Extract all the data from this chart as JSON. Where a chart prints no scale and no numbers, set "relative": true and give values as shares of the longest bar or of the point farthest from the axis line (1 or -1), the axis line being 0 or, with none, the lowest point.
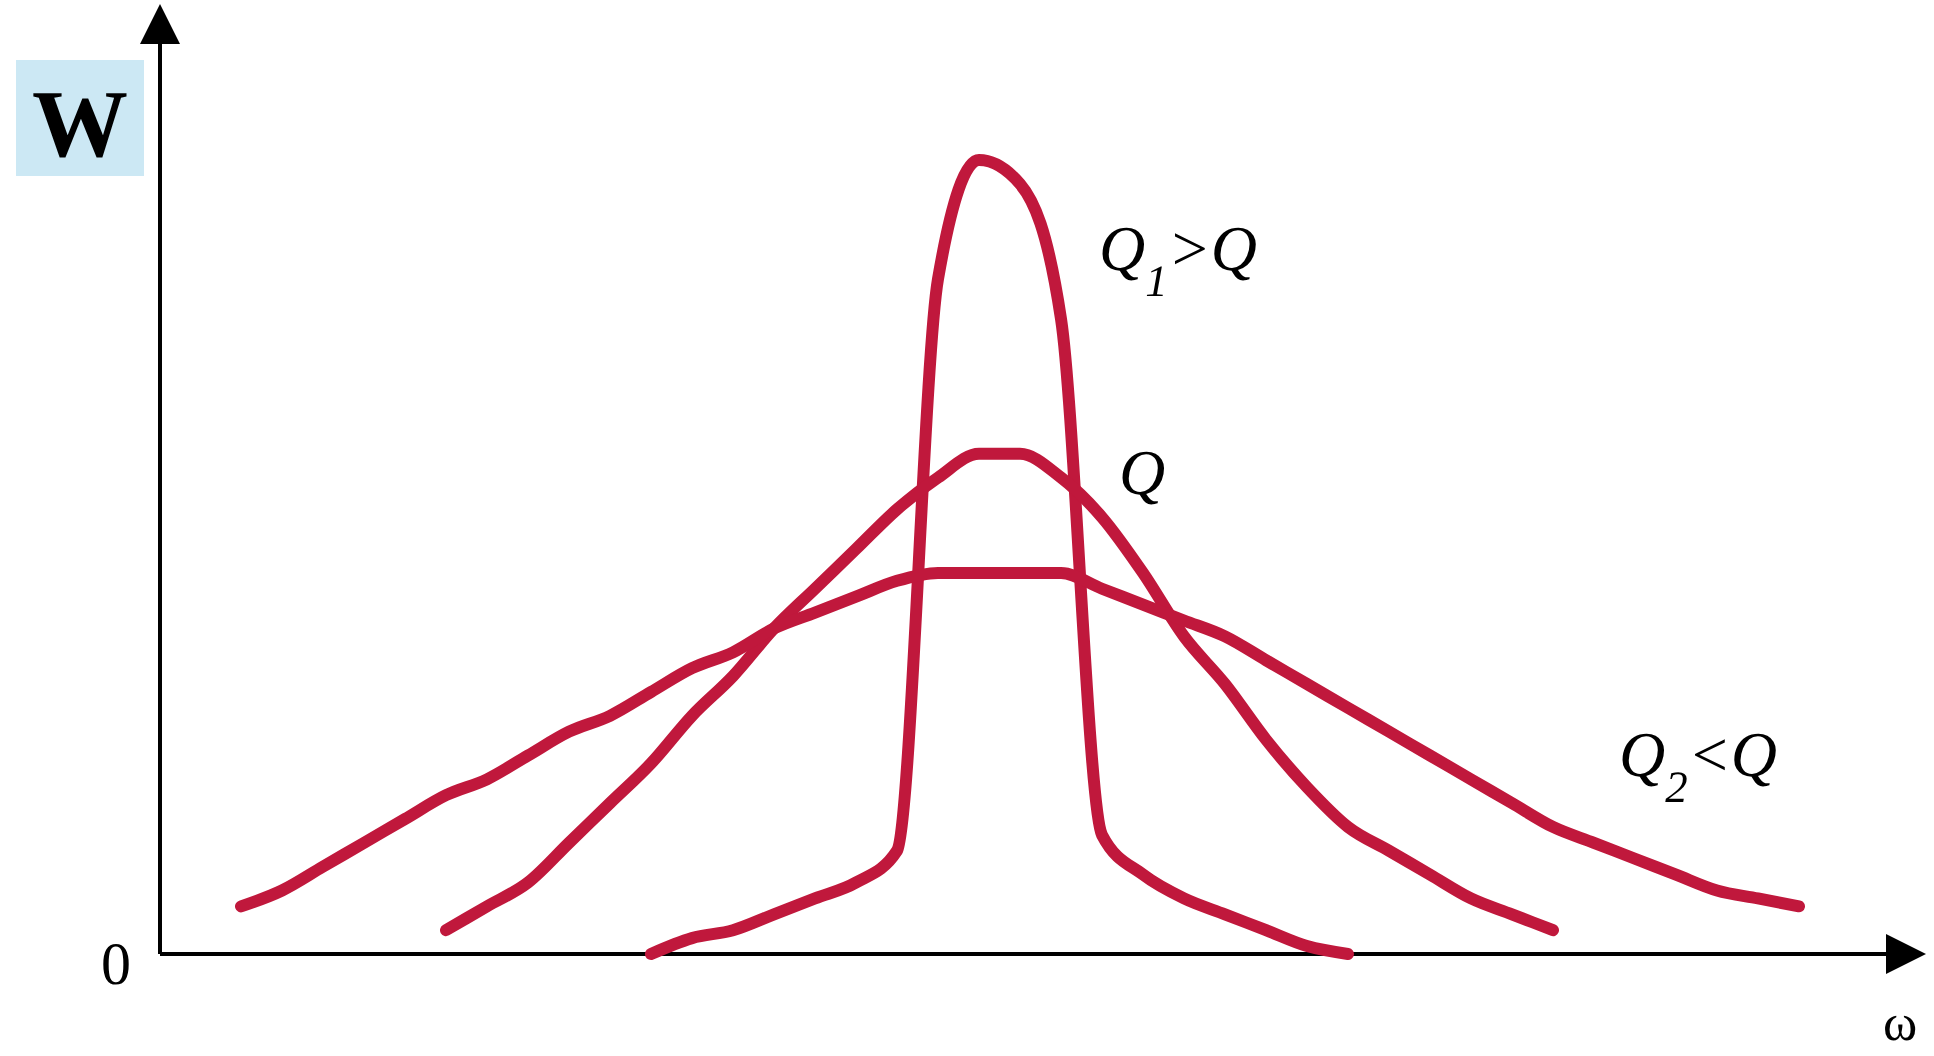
{
  "chart_data": {
    "type": "line",
    "relative": true,
    "ylabel": "W",
    "xlabel": "ω",
    "annotations": [
      "0"
    ],
    "categories": [
      null,
      null,
      null,
      null,
      null,
      null,
      null,
      null,
      null,
      null,
      null,
      null,
      null,
      null,
      null,
      null,
      null,
      null,
      null,
      null,
      null,
      null,
      null,
      null,
      null,
      null,
      null,
      null,
      null,
      null,
      null,
      null,
      null,
      null,
      null,
      null,
      null,
      null,
      null,
      null,
      null
    ],
    "series": [
      {
        "name": "Q$_{1}$>Q",
        "color": "#c0183c",
        "values": [
          null,
          null,
          null,
          null,
          null,
          null,
          null,
          null,
          null,
          null,
          null,
          0.0,
          0.02,
          0.03,
          0.05,
          0.07,
          0.09,
          0.13,
          0.85,
          1.0,
          0.97,
          0.8,
          0.15,
          0.1,
          0.07,
          0.05,
          0.03,
          0.01,
          0.0,
          null,
          null,
          null,
          null,
          null,
          null,
          null,
          null,
          null,
          null,
          null,
          null
        ]
      },
      {
        "name": "Q",
        "color": "#c0183c",
        "values": [
          null,
          null,
          null,
          null,
          null,
          null,
          0.03,
          0.06,
          0.09,
          0.14,
          0.19,
          0.24,
          0.3,
          0.35,
          0.41,
          0.46,
          0.51,
          0.56,
          0.6,
          0.63,
          0.63,
          0.6,
          0.55,
          0.48,
          0.4,
          0.34,
          0.27,
          0.21,
          0.16,
          0.13,
          0.1,
          0.07,
          0.05,
          0.03,
          null,
          null,
          null,
          null,
          null,
          null,
          null
        ]
      },
      {
        "name": "Q$_{2}$<Q",
        "color": "#c0183c",
        "values": [
          null,
          0.06,
          0.08,
          0.11,
          0.14,
          0.17,
          0.2,
          0.22,
          0.25,
          0.28,
          0.3,
          0.33,
          0.36,
          0.38,
          0.41,
          0.43,
          0.45,
          0.47,
          0.48,
          0.48,
          0.48,
          0.48,
          0.46,
          0.44,
          0.42,
          0.4,
          0.37,
          0.34,
          0.31,
          0.28,
          0.25,
          0.22,
          0.19,
          0.16,
          0.14,
          0.12,
          0.1,
          0.08,
          0.07,
          0.06,
          null
        ]
      }
    ]
  }
}
